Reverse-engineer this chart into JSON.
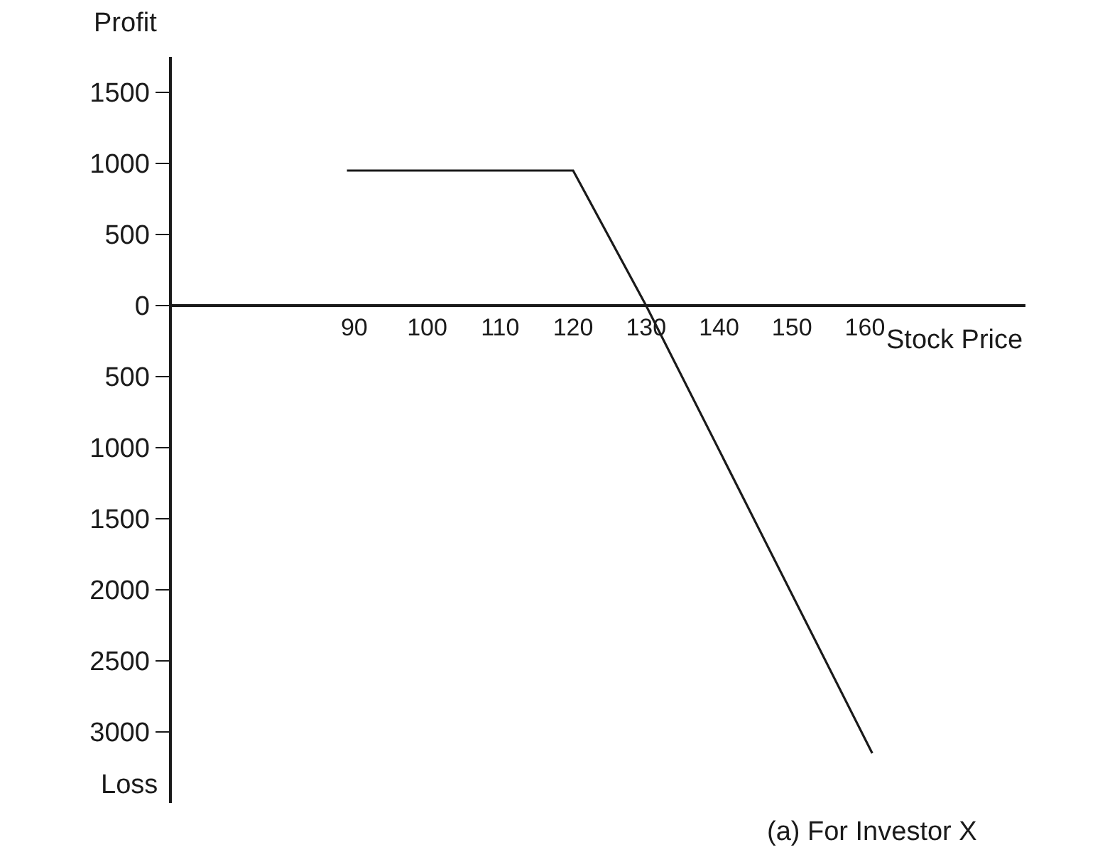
{
  "chart_data": {
    "type": "line",
    "xlabel": "Stock Price",
    "x": [
      89,
      120,
      130,
      161
    ],
    "series": [
      {
        "color": "#1a1a1a",
        "values": [
          950,
          950,
          0,
          -3150
        ]
      }
    ],
    "xlim": [
      65,
      182
    ],
    "xticks": [
      90,
      100,
      110,
      120,
      130,
      140,
      150,
      160
    ],
    "ylim": [
      -3500,
      1750
    ],
    "yticks": [
      {
        "value": 1500,
        "label": "1500"
      },
      {
        "value": 1000,
        "label": "1000"
      },
      {
        "value": 500,
        "label": "500"
      },
      {
        "value": 0,
        "label": "0"
      },
      {
        "value": -500,
        "label": "500"
      },
      {
        "value": -1000,
        "label": "1000"
      },
      {
        "value": -1500,
        "label": "1500"
      },
      {
        "value": -2000,
        "label": "2000"
      },
      {
        "value": -2500,
        "label": "2500"
      },
      {
        "value": -3000,
        "label": "3000"
      }
    ],
    "annotations": [
      "Profit",
      "Loss",
      "(a) For Investor X"
    ],
    "legend": false,
    "marker": "none",
    "line_style": "solid"
  }
}
